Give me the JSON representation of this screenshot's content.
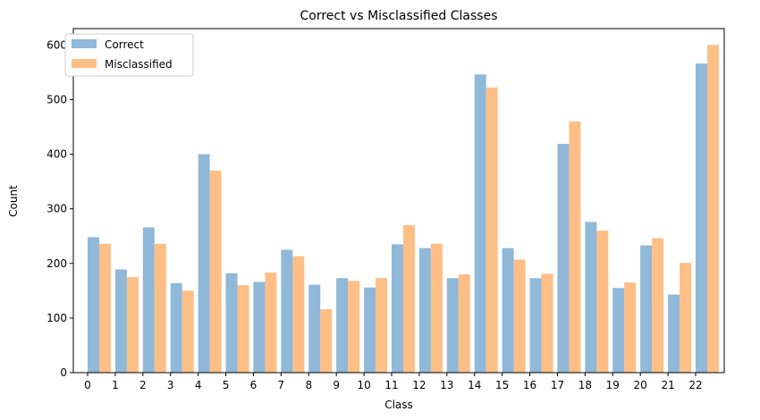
{
  "chart_data": {
    "type": "bar",
    "title": "Correct vs Misclassified Classes",
    "xlabel": "Class",
    "ylabel": "Count",
    "ylim": [
      0,
      630
    ],
    "yticks": [
      0,
      100,
      200,
      300,
      400,
      500,
      600
    ],
    "categories": [
      "0",
      "1",
      "2",
      "3",
      "4",
      "5",
      "6",
      "7",
      "8",
      "9",
      "10",
      "11",
      "12",
      "13",
      "14",
      "15",
      "16",
      "17",
      "18",
      "19",
      "20",
      "21",
      "22"
    ],
    "series": [
      {
        "name": "Correct",
        "color": "#8fb8d9",
        "values": [
          248,
          189,
          266,
          164,
          400,
          182,
          166,
          225,
          161,
          173,
          156,
          235,
          228,
          173,
          546,
          228,
          173,
          419,
          276,
          155,
          233,
          143,
          566
        ]
      },
      {
        "name": "Misclassified",
        "color": "#ffbe86",
        "values": [
          236,
          175,
          236,
          150,
          370,
          160,
          183,
          213,
          116,
          168,
          173,
          270,
          236,
          180,
          522,
          207,
          181,
          460,
          260,
          165,
          246,
          201,
          600
        ]
      }
    ],
    "legend_position": "top-left",
    "grid": false
  }
}
